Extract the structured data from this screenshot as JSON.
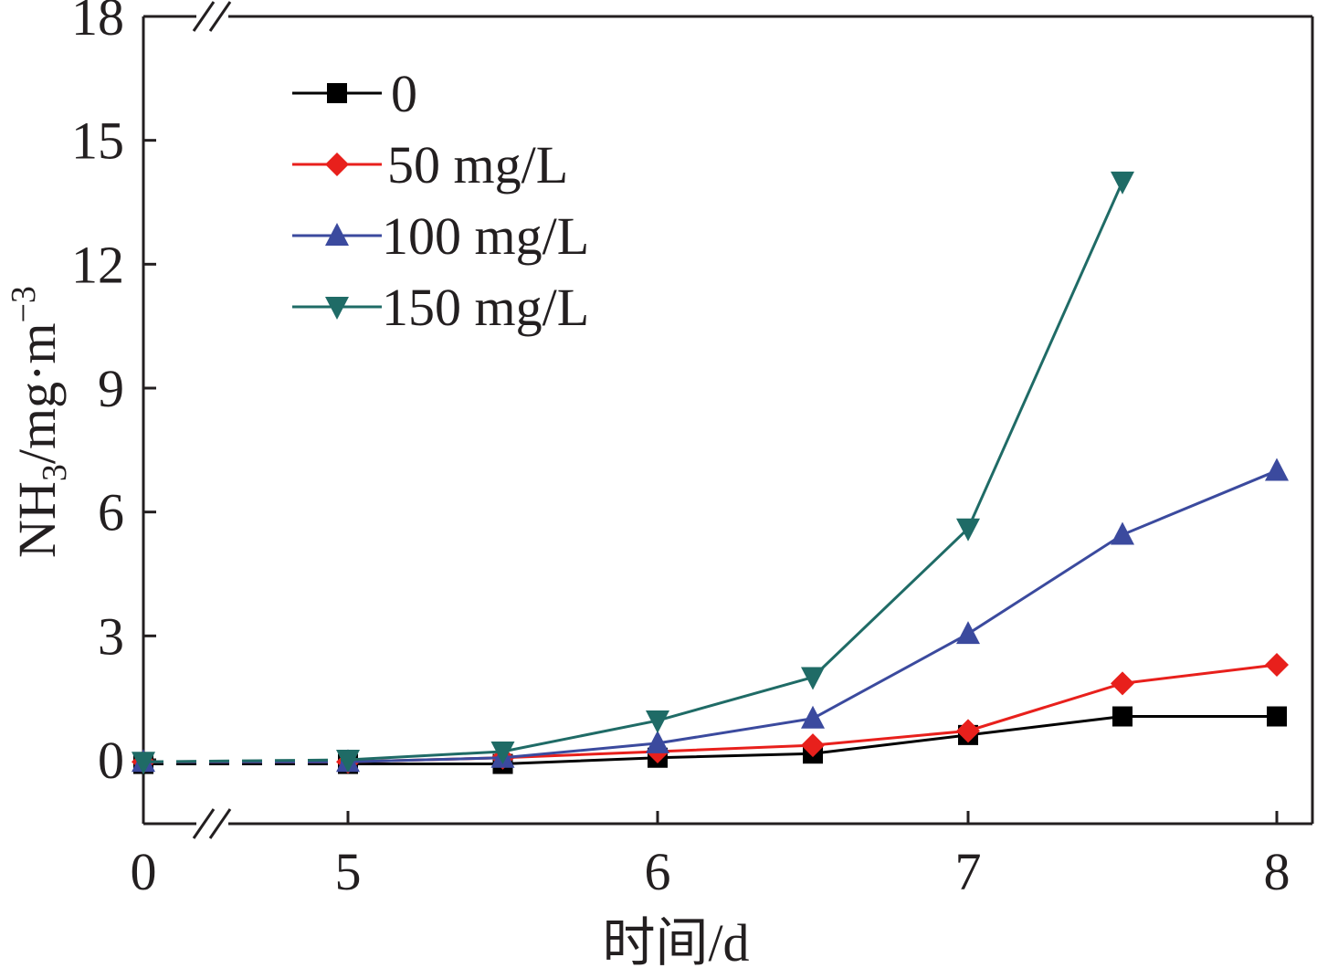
{
  "chart_data": {
    "type": "line",
    "title": "",
    "xlabel": "时间/d",
    "ylabel_main": "NH",
    "ylabel_sub": "3",
    "ylabel_rest": "/mg·m",
    "ylabel_sup": "−3",
    "x_axis_break_after": 0,
    "y_axis_break_at_top": true,
    "xlim": [
      0,
      8
    ],
    "ylim": [
      -1.5,
      18
    ],
    "x_ticks": [
      0,
      5,
      6,
      7,
      8
    ],
    "x_tick_labels": [
      "0",
      "5",
      "6",
      "7",
      "8"
    ],
    "y_ticks": [
      0,
      3,
      6,
      9,
      12,
      15,
      18
    ],
    "y_tick_labels": [
      "0",
      "3",
      "6",
      "9",
      "12",
      "15",
      "18"
    ],
    "grid": false,
    "legend_position": "top-left",
    "series": [
      {
        "name": "0",
        "color": "#000000",
        "marker": "square",
        "points": [
          [
            0,
            -0.1
          ],
          [
            5,
            -0.1
          ],
          [
            5.5,
            -0.1
          ],
          [
            6,
            0.05
          ],
          [
            6.5,
            0.15
          ],
          [
            7,
            0.6
          ],
          [
            7.5,
            1.05
          ],
          [
            8,
            1.05
          ]
        ]
      },
      {
        "name": "50 mg/L",
        "color": "#e8201c",
        "marker": "diamond",
        "points": [
          [
            0,
            -0.05
          ],
          [
            5,
            -0.05
          ],
          [
            5.5,
            0.05
          ],
          [
            6,
            0.2
          ],
          [
            6.5,
            0.35
          ],
          [
            7,
            0.7
          ],
          [
            7.5,
            1.85
          ],
          [
            8,
            2.3
          ]
        ]
      },
      {
        "name": "100 mg/L",
        "color": "#3b4a9e",
        "marker": "triangle-up",
        "points": [
          [
            0,
            -0.05
          ],
          [
            5,
            -0.05
          ],
          [
            5.5,
            0.05
          ],
          [
            6,
            0.4
          ],
          [
            6.5,
            1.0
          ],
          [
            7,
            3.05
          ],
          [
            7.5,
            5.45
          ],
          [
            8,
            7.0
          ]
        ]
      },
      {
        "name": "150 mg/L",
        "color": "#1f6b66",
        "marker": "triangle-down",
        "points": [
          [
            0,
            -0.05
          ],
          [
            5,
            0.0
          ],
          [
            5.5,
            0.2
          ],
          [
            6,
            0.95
          ],
          [
            6.5,
            2.0
          ],
          [
            7,
            5.6
          ],
          [
            7.5,
            14.0
          ]
        ]
      }
    ]
  }
}
